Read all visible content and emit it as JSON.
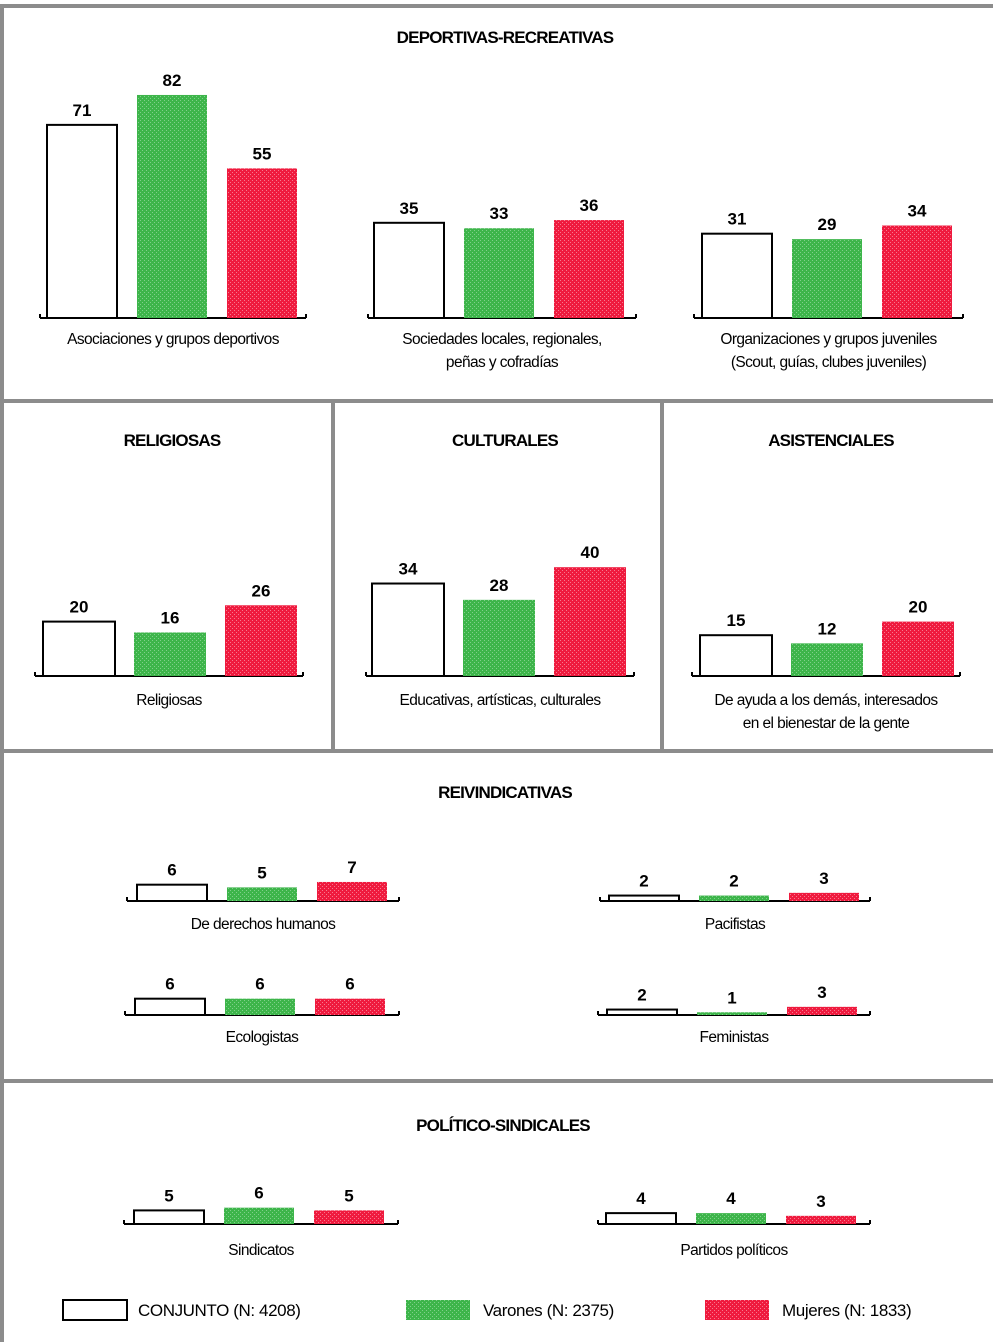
{
  "chart_data": {
    "type": "bar",
    "y_unit": "%",
    "colors": {
      "conjunto": "#ffffff",
      "varones": "#3db54a",
      "mujeres": "#ef1a3e",
      "frame": "#8c8c8c"
    },
    "legend": [
      {
        "key": "conjunto",
        "label": "CONJUNTO (N: 4208)"
      },
      {
        "key": "varones",
        "label": "Varones (N: 2375)"
      },
      {
        "key": "mujeres",
        "label": "Mujeres (N: 1833)"
      }
    ],
    "sections": [
      {
        "title": "DEPORTIVAS-RECREATIVAS",
        "groups": [
          {
            "label": [
              "Asociaciones y grupos deportivos"
            ],
            "values": [
              71,
              82,
              55
            ]
          },
          {
            "label": [
              "Sociedades locales, regionales,",
              "peñas y cofradías"
            ],
            "values": [
              35,
              33,
              36
            ]
          },
          {
            "label": [
              "Organizaciones y grupos juveniles",
              "(Scout, guías, clubes juveniles)"
            ],
            "values": [
              31,
              29,
              34
            ]
          }
        ]
      },
      {
        "title": "RELIGIOSAS",
        "groups": [
          {
            "label": [
              "Religiosas"
            ],
            "values": [
              20,
              16,
              26
            ]
          }
        ]
      },
      {
        "title": "CULTURALES",
        "groups": [
          {
            "label": [
              "Educativas, artísticas, culturales"
            ],
            "values": [
              34,
              28,
              40
            ]
          }
        ]
      },
      {
        "title": "ASISTENCIALES",
        "groups": [
          {
            "label": [
              "De ayuda a los demás, interesados",
              "en el bienestar de la gente"
            ],
            "values": [
              15,
              12,
              20
            ]
          }
        ]
      },
      {
        "title": "REIVINDICATIVAS",
        "groups": [
          {
            "label": [
              "De derechos humanos"
            ],
            "values": [
              6,
              5,
              7
            ]
          },
          {
            "label": [
              "Pacifistas"
            ],
            "values": [
              2,
              2,
              3
            ]
          },
          {
            "label": [
              "Ecologistas"
            ],
            "values": [
              6,
              6,
              6
            ]
          },
          {
            "label": [
              "Feministas"
            ],
            "values": [
              2,
              1,
              3
            ]
          }
        ]
      },
      {
        "title": "POLÍTICO-SINDICALES",
        "groups": [
          {
            "label": [
              "Sindicatos"
            ],
            "values": [
              5,
              6,
              5
            ]
          },
          {
            "label": [
              "Partidos políticos"
            ],
            "values": [
              4,
              4,
              3
            ]
          }
        ]
      }
    ]
  }
}
